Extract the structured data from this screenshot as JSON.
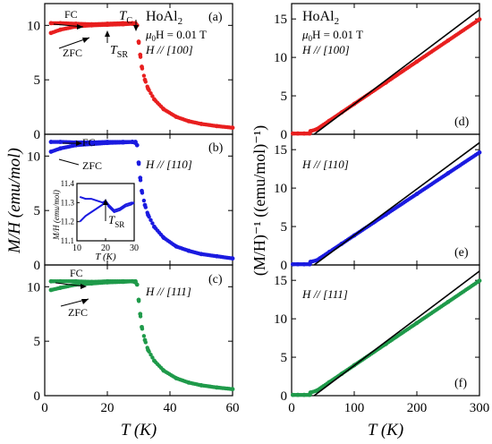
{
  "colors": {
    "a": "#e81f1f",
    "b": "#1a1ae0",
    "c": "#1f9a4a",
    "fit": "#000000"
  },
  "left_ylabel": "M/H (emu/mol)",
  "right_ylabel": "(M/H)⁻¹ ((emu/mol)⁻¹)",
  "left_xlabel": "T (K)",
  "right_xlabel": "T (K)",
  "compound_main": "HoAl",
  "compound_sub": "2",
  "field_prefix": "μ",
  "field_sub": "0",
  "field_value": "H = 0.01 T",
  "dir_100": "H // [100]",
  "dir_110": "H // [110]",
  "dir_111": "H // [111]",
  "panel_letters": [
    "(a)",
    "(b)",
    "(c)",
    "(d)",
    "(e)",
    "(f)"
  ],
  "fc_label": "FC",
  "zfc_label": "ZFC",
  "tc_main": "T",
  "tc_sub": "C",
  "tsr_main": "T",
  "tsr_sub": "SR",
  "inset_ylabel": "M/H (emu/mol)",
  "inset_xlabel": "T (K)",
  "chart_data": [
    {
      "panel": "(a)",
      "type": "scatter",
      "xlabel": "T (K)",
      "ylabel": "M/H (emu/mol)",
      "xlim": [
        0,
        60
      ],
      "ylim": [
        0,
        12
      ],
      "xticks": [
        0,
        20,
        40,
        60
      ],
      "yticks": [
        0,
        5,
        10
      ],
      "series": [
        {
          "name": "FC",
          "x": [
            2,
            5,
            10,
            15,
            20,
            25,
            28,
            29
          ],
          "y": [
            10.2,
            10.2,
            10.15,
            10.1,
            10.15,
            10.2,
            10.2,
            10.2
          ]
        },
        {
          "name": "ZFC",
          "x": [
            2,
            5,
            10,
            15,
            20,
            25,
            28,
            29
          ],
          "y": [
            9.3,
            9.6,
            9.9,
            10.0,
            10.05,
            10.1,
            10.15,
            10.1
          ]
        },
        {
          "x": [
            29.5,
            30,
            30.5,
            31,
            32,
            33,
            35,
            38,
            42,
            46,
            50,
            55,
            60
          ],
          "y": [
            10.0,
            8.5,
            7.3,
            6.2,
            5.0,
            4.2,
            3.2,
            2.3,
            1.6,
            1.2,
            0.95,
            0.75,
            0.6
          ]
        }
      ]
    },
    {
      "panel": "(b)",
      "type": "scatter",
      "xlim": [
        0,
        60
      ],
      "ylim": [
        0,
        12
      ],
      "xticks": [
        0,
        20,
        40,
        60
      ],
      "yticks": [
        0,
        5,
        10
      ],
      "series": [
        {
          "name": "FC",
          "x": [
            2,
            5,
            10,
            15,
            20,
            25,
            28,
            29
          ],
          "y": [
            11.3,
            11.3,
            11.25,
            11.25,
            11.3,
            11.3,
            11.3,
            11.3
          ]
        },
        {
          "name": "ZFC",
          "x": [
            2,
            5,
            10,
            15,
            20,
            25,
            28,
            29
          ],
          "y": [
            10.4,
            10.7,
            11.0,
            11.1,
            11.2,
            11.25,
            11.3,
            11.2
          ]
        },
        {
          "x": [
            29.5,
            30,
            30.5,
            31,
            32,
            33,
            35,
            38,
            42,
            46,
            50,
            55,
            60
          ],
          "y": [
            11.0,
            9.4,
            8.0,
            6.8,
            5.5,
            4.6,
            3.5,
            2.5,
            1.7,
            1.3,
            1.0,
            0.8,
            0.6
          ]
        }
      ]
    },
    {
      "panel": "inset (b)",
      "type": "line",
      "xlim": [
        10,
        30
      ],
      "ylim": [
        11.1,
        11.4
      ],
      "xticks": [
        10,
        20,
        30
      ],
      "yticks": [
        11.1,
        11.2,
        11.3,
        11.4
      ],
      "series": [
        {
          "name": "FC",
          "x": [
            11,
            13,
            15,
            17,
            19,
            20,
            21,
            23,
            25,
            27,
            29,
            30
          ],
          "y": [
            11.33,
            11.32,
            11.32,
            11.31,
            11.3,
            11.31,
            11.29,
            11.26,
            11.27,
            11.29,
            11.3,
            11.3
          ]
        },
        {
          "name": "ZFC",
          "x": [
            11,
            13,
            15,
            17,
            19,
            20,
            21,
            23,
            25,
            27,
            29,
            30
          ],
          "y": [
            11.2,
            11.23,
            11.25,
            11.27,
            11.29,
            11.31,
            11.28,
            11.25,
            11.26,
            11.28,
            11.29,
            11.3
          ]
        }
      ]
    },
    {
      "panel": "(c)",
      "type": "scatter",
      "xlim": [
        0,
        60
      ],
      "ylim": [
        0,
        12
      ],
      "xticks": [
        0,
        20,
        40,
        60
      ],
      "yticks": [
        0,
        5,
        10
      ],
      "series": [
        {
          "name": "FC",
          "x": [
            2,
            5,
            10,
            15,
            20,
            25,
            28,
            29
          ],
          "y": [
            10.5,
            10.5,
            10.5,
            10.45,
            10.5,
            10.5,
            10.5,
            10.5
          ]
        },
        {
          "name": "ZFC",
          "x": [
            2,
            5,
            10,
            15,
            20,
            25,
            28,
            29
          ],
          "y": [
            9.7,
            9.9,
            10.2,
            10.3,
            10.4,
            10.45,
            10.5,
            10.4
          ]
        },
        {
          "x": [
            29.5,
            30,
            30.5,
            31,
            32,
            33,
            35,
            38,
            42,
            46,
            50,
            55,
            60
          ],
          "y": [
            10.2,
            8.8,
            7.5,
            6.3,
            5.1,
            4.2,
            3.2,
            2.3,
            1.6,
            1.2,
            0.95,
            0.75,
            0.6
          ]
        }
      ]
    },
    {
      "panel": "(d)",
      "type": "scatter",
      "xlabel": "T (K)",
      "ylabel": "(M/H)⁻¹ ((emu/mol)⁻¹)",
      "xlim": [
        0,
        300
      ],
      "ylim": [
        0,
        17
      ],
      "xticks": [
        0,
        100,
        200,
        300
      ],
      "yticks": [
        0,
        5,
        10,
        15
      ],
      "series": [
        {
          "x": [
            2,
            10,
            20,
            29,
            30,
            40,
            60,
            80,
            100,
            150,
            200,
            250,
            300
          ],
          "y": [
            0.1,
            0.1,
            0.1,
            0.1,
            0.4,
            0.65,
            1.75,
            2.85,
            3.95,
            6.7,
            9.45,
            12.2,
            14.95
          ]
        },
        {
          "name": "fit",
          "x": [
            36,
            300
          ],
          "y": [
            0,
            16.2
          ]
        }
      ]
    },
    {
      "panel": "(e)",
      "type": "scatter",
      "xlim": [
        0,
        300
      ],
      "ylim": [
        0,
        17
      ],
      "xticks": [
        0,
        100,
        200,
        300
      ],
      "yticks": [
        0,
        5,
        10,
        15
      ],
      "series": [
        {
          "x": [
            2,
            10,
            20,
            29,
            30,
            40,
            60,
            80,
            100,
            150,
            200,
            250,
            300
          ],
          "y": [
            0.09,
            0.09,
            0.09,
            0.09,
            0.4,
            0.6,
            1.68,
            2.76,
            3.84,
            6.54,
            9.24,
            11.94,
            14.64
          ]
        },
        {
          "name": "fit",
          "x": [
            36,
            300
          ],
          "y": [
            0,
            15.9
          ]
        }
      ]
    },
    {
      "panel": "(f)",
      "type": "scatter",
      "xlim": [
        0,
        300
      ],
      "ylim": [
        0,
        17
      ],
      "xticks": [
        0,
        100,
        200,
        300
      ],
      "yticks": [
        0,
        5,
        10,
        15
      ],
      "series": [
        {
          "x": [
            2,
            10,
            20,
            29,
            30,
            40,
            60,
            80,
            100,
            150,
            200,
            250,
            300
          ],
          "y": [
            0.1,
            0.1,
            0.1,
            0.1,
            0.4,
            0.65,
            1.75,
            2.85,
            3.95,
            6.7,
            9.45,
            12.2,
            14.95
          ]
        },
        {
          "name": "fit",
          "x": [
            36,
            300
          ],
          "y": [
            0,
            16.2
          ]
        }
      ]
    }
  ]
}
